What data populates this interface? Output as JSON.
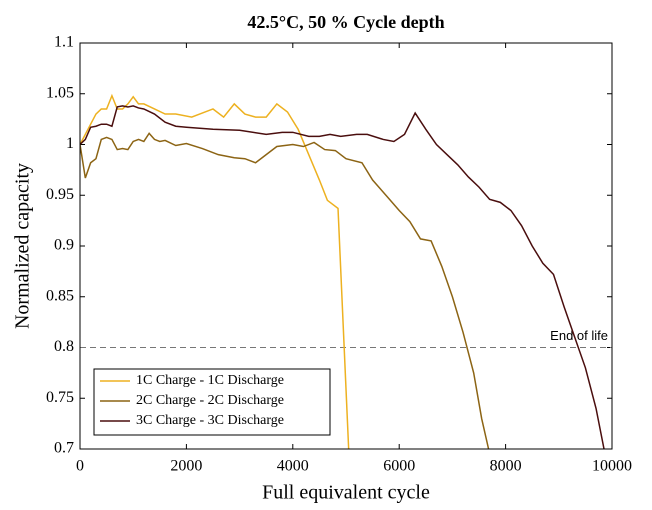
{
  "chart_data": {
    "type": "line",
    "title": "42.5°C, 50 % Cycle depth",
    "x_label": "Full equivalent cycle",
    "y_label": "Normalized capacity",
    "xlim": [
      0,
      10000
    ],
    "xticks": [
      0,
      2000,
      4000,
      6000,
      8000,
      10000
    ],
    "ylim": [
      0.7,
      1.1
    ],
    "yticks": [
      0.7,
      0.75,
      0.8,
      0.85,
      0.9,
      0.95,
      1,
      1.05,
      1.1
    ],
    "reference_line": {
      "value": 0.8,
      "label": "End of life"
    },
    "legend": "lower left",
    "series": [
      {
        "name": "1C Charge - 1C Discharge",
        "color": "#EDB120",
        "x": [
          0,
          100,
          200,
          300,
          400,
          500,
          600,
          700,
          800,
          900,
          1000,
          1100,
          1200,
          1400,
          1600,
          1800,
          2100,
          2500,
          2700,
          2900,
          3100,
          3300,
          3500,
          3700,
          3900,
          4100,
          4300,
          4500,
          4650,
          4850,
          5050
        ],
        "values": [
          1.0,
          1.01,
          1.02,
          1.03,
          1.035,
          1.035,
          1.048,
          1.035,
          1.035,
          1.04,
          1.047,
          1.04,
          1.04,
          1.035,
          1.03,
          1.03,
          1.027,
          1.035,
          1.027,
          1.04,
          1.03,
          1.027,
          1.027,
          1.04,
          1.032,
          1.015,
          0.99,
          0.965,
          0.945,
          0.937,
          0.7
        ]
      },
      {
        "name": "2C Charge - 2C Discharge",
        "color": "#8C6414",
        "x": [
          0,
          100,
          200,
          300,
          400,
          500,
          600,
          700,
          800,
          900,
          1000,
          1100,
          1200,
          1300,
          1400,
          1500,
          1600,
          1800,
          2000,
          2300,
          2600,
          2900,
          3100,
          3300,
          3500,
          3700,
          4000,
          4200,
          4400,
          4600,
          4800,
          5000,
          5300,
          5500,
          5800,
          6000,
          6200,
          6400,
          6600,
          6800,
          7000,
          7200,
          7400,
          7550,
          7680
        ],
        "values": [
          1.0,
          0.967,
          0.982,
          0.986,
          1.005,
          1.007,
          1.005,
          0.995,
          0.996,
          0.995,
          1.003,
          1.005,
          1.003,
          1.011,
          1.005,
          1.003,
          1.004,
          0.999,
          1.001,
          0.996,
          0.99,
          0.987,
          0.986,
          0.982,
          0.99,
          0.998,
          1.0,
          0.998,
          1.002,
          0.995,
          0.994,
          0.986,
          0.982,
          0.965,
          0.947,
          0.935,
          0.924,
          0.907,
          0.905,
          0.88,
          0.85,
          0.815,
          0.775,
          0.73,
          0.7
        ]
      },
      {
        "name": "3C Charge - 3C Discharge",
        "color": "#4A0E0E",
        "x": [
          0,
          100,
          200,
          300,
          400,
          500,
          600,
          700,
          800,
          900,
          1000,
          1100,
          1200,
          1400,
          1600,
          1800,
          2000,
          2500,
          3000,
          3500,
          3800,
          4000,
          4300,
          4500,
          4700,
          4900,
          5200,
          5400,
          5700,
          5900,
          6100,
          6300,
          6500,
          6700,
          6900,
          7100,
          7300,
          7500,
          7700,
          7900,
          8100,
          8300,
          8500,
          8700,
          8900,
          9100,
          9300,
          9500,
          9700,
          9850
        ],
        "values": [
          1.0,
          1.005,
          1.017,
          1.018,
          1.02,
          1.02,
          1.018,
          1.037,
          1.038,
          1.037,
          1.038,
          1.036,
          1.035,
          1.03,
          1.022,
          1.018,
          1.017,
          1.015,
          1.014,
          1.01,
          1.012,
          1.012,
          1.008,
          1.008,
          1.01,
          1.008,
          1.01,
          1.01,
          1.005,
          1.003,
          1.01,
          1.031,
          1.015,
          1.0,
          0.99,
          0.98,
          0.968,
          0.958,
          0.946,
          0.943,
          0.935,
          0.92,
          0.9,
          0.883,
          0.872,
          0.84,
          0.81,
          0.78,
          0.74,
          0.7
        ]
      }
    ]
  }
}
